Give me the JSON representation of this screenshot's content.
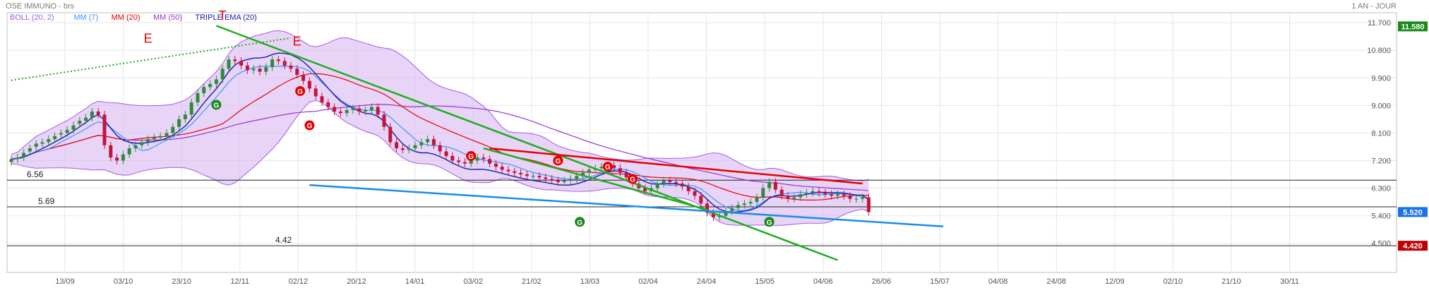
{
  "header": {
    "title": "OSE IMMUNO - brs",
    "period": "1 AN - JOUR",
    "legend": [
      {
        "label": "BOLL (20, 2)",
        "color": "#a35ce6"
      },
      {
        "label": "MM (7)",
        "color": "#3399ff"
      },
      {
        "label": "MM (20)",
        "color": "#e60000"
      },
      {
        "label": "MM (50)",
        "color": "#9933cc"
      },
      {
        "label": "TRIPLE EMA (20)",
        "color": "#1a1aa6"
      }
    ]
  },
  "chart_data": {
    "type": "candlestick",
    "x_tick_labels": [
      "13/09",
      "03/10",
      "23/10",
      "12/11",
      "02/12",
      "20/12",
      "14/01",
      "03/02",
      "21/02",
      "13/03",
      "02/04",
      "24/04",
      "15/05",
      "04/06",
      "26/06",
      "15/07",
      "04/08",
      "24/08",
      "12/09",
      "02/10",
      "21/10",
      "30/11"
    ],
    "y_tick_labels": [
      "4.500",
      "5.400",
      "6.300",
      "7.200",
      "8.100",
      "9.000",
      "9.900",
      "10.800",
      "11.700"
    ],
    "ylim": [
      4.1,
      11.75
    ],
    "price_badges": [
      {
        "value": "11.580",
        "y": 11.58,
        "color": "#1a8a1a"
      },
      {
        "value": "5.520",
        "y": 5.52,
        "color": "#1a73e8"
      },
      {
        "value": "4.420",
        "y": 4.42,
        "color": "#c00000"
      }
    ],
    "horizontal_levels": [
      {
        "label": "6.56",
        "y": 6.56
      },
      {
        "label": "5.69",
        "y": 5.69
      },
      {
        "label": "4.42",
        "y": 4.42
      }
    ],
    "trendlines": [
      {
        "color": "#1fae1f",
        "dashed": true,
        "points": [
          [
            0,
            9.82
          ],
          [
            45,
            11.2
          ]
        ]
      },
      {
        "color": "#1fae1f",
        "dashed": false,
        "points": [
          [
            33,
            11.6
          ],
          [
            133,
            3.95
          ]
        ]
      },
      {
        "color": "#1fae1f",
        "dashed": false,
        "points": [
          [
            76,
            7.6
          ],
          [
            112,
            5.6
          ]
        ]
      },
      {
        "color": "#e60000",
        "dashed": false,
        "points": [
          [
            77,
            7.6
          ],
          [
            137,
            6.45
          ]
        ]
      },
      {
        "color": "#1a8ce6",
        "dashed": false,
        "points": [
          [
            48,
            6.4
          ],
          [
            150,
            5.05
          ]
        ]
      }
    ],
    "markers": [
      {
        "text": "T",
        "x": 34,
        "y": 11.8,
        "kind": "letter"
      },
      {
        "text": "E",
        "x": 22,
        "y": 11.05,
        "kind": "letter"
      },
      {
        "text": "E",
        "x": 46,
        "y": 10.95,
        "kind": "letter"
      },
      {
        "text": "G",
        "x": 33,
        "y": 9.02,
        "kind": "circle",
        "color": "#1a8a1a"
      },
      {
        "text": "G",
        "x": 46.5,
        "y": 9.47,
        "kind": "circle",
        "color": "#e60000"
      },
      {
        "text": "G",
        "x": 48,
        "y": 8.35,
        "kind": "circle",
        "color": "#e60000"
      },
      {
        "text": "G",
        "x": 74,
        "y": 7.35,
        "kind": "circle",
        "color": "#e60000"
      },
      {
        "text": "G",
        "x": 88,
        "y": 7.2,
        "kind": "circle",
        "color": "#e60000"
      },
      {
        "text": "G",
        "x": 96,
        "y": 7.0,
        "kind": "circle",
        "color": "#e60000"
      },
      {
        "text": "G",
        "x": 100,
        "y": 6.6,
        "kind": "circle",
        "color": "#e60000"
      },
      {
        "text": "G",
        "x": 91.5,
        "y": 5.2,
        "kind": "circle",
        "color": "#1a8a1a"
      },
      {
        "text": "G",
        "x": 122,
        "y": 5.2,
        "kind": "circle",
        "color": "#1a8a1a"
      }
    ],
    "close": [
      7.25,
      7.3,
      7.45,
      7.6,
      7.75,
      7.8,
      7.9,
      8.0,
      8.1,
      8.2,
      8.35,
      8.5,
      8.6,
      8.8,
      8.7,
      7.7,
      7.3,
      7.2,
      7.4,
      7.6,
      7.7,
      7.8,
      7.9,
      7.95,
      8.0,
      8.1,
      8.3,
      8.55,
      8.7,
      9.1,
      9.4,
      9.6,
      9.7,
      9.85,
      10.2,
      10.5,
      10.45,
      10.3,
      10.15,
      10.2,
      10.1,
      10.25,
      10.5,
      10.45,
      10.3,
      10.2,
      10.0,
      9.8,
      9.55,
      9.3,
      9.1,
      8.95,
      8.8,
      8.75,
      8.85,
      8.9,
      8.8,
      8.85,
      8.95,
      8.7,
      8.3,
      7.8,
      7.6,
      7.55,
      7.6,
      7.7,
      7.8,
      7.9,
      7.7,
      7.5,
      7.35,
      7.2,
      7.15,
      7.1,
      7.2,
      7.3,
      7.25,
      7.1,
      7.0,
      6.9,
      6.85,
      6.8,
      6.75,
      6.7,
      6.7,
      6.65,
      6.6,
      6.55,
      6.5,
      6.55,
      6.6,
      6.7,
      6.8,
      6.9,
      6.95,
      7.0,
      7.05,
      6.95,
      6.8,
      6.65,
      6.45,
      6.3,
      6.2,
      6.3,
      6.45,
      6.55,
      6.5,
      6.45,
      6.35,
      6.2,
      6.05,
      5.8,
      5.5,
      5.35,
      5.4,
      5.55,
      5.65,
      5.75,
      5.8,
      5.85,
      6.0,
      6.3,
      6.5,
      6.25,
      6.05,
      5.95,
      6.0,
      6.1,
      6.15,
      6.2,
      6.15,
      6.1,
      6.05,
      6.1,
      6.05,
      5.95,
      5.95,
      6.0,
      5.52
    ],
    "open_offsets": [
      -0.1,
      -0.05,
      -0.15,
      -0.1,
      -0.1,
      -0.05,
      -0.1,
      -0.1,
      -0.05,
      -0.1,
      -0.15,
      -0.1,
      -0.1,
      -0.2,
      0.1,
      1.0,
      0.4,
      0.1,
      -0.2,
      -0.2,
      -0.1,
      -0.1,
      -0.1,
      -0.05,
      -0.05,
      -0.1,
      -0.2,
      -0.25,
      -0.15,
      -0.4,
      -0.3,
      -0.2,
      -0.1,
      -0.15,
      -0.35,
      -0.3,
      0.05,
      0.15,
      0.15,
      -0.05,
      0.1,
      -0.15,
      -0.25,
      0.05,
      0.15,
      0.1,
      0.2,
      0.2,
      0.25,
      0.25,
      0.2,
      0.15,
      0.15,
      0.05,
      -0.1,
      -0.05,
      0.1,
      -0.05,
      -0.1,
      0.25,
      0.4,
      0.5,
      0.2,
      0.05,
      -0.05,
      -0.1,
      -0.1,
      -0.1,
      0.2,
      0.2,
      0.15,
      0.15,
      0.05,
      0.05,
      -0.1,
      -0.1,
      0.05,
      0.15,
      0.1,
      0.1,
      0.05,
      0.05,
      0.05,
      0.05,
      0.0,
      0.05,
      0.05,
      0.05,
      0.05,
      -0.05,
      -0.05,
      -0.1,
      -0.1,
      -0.1,
      -0.05,
      -0.05,
      -0.05,
      0.1,
      0.15,
      0.15,
      0.2,
      0.15,
      0.1,
      -0.1,
      -0.15,
      -0.1,
      0.05,
      0.05,
      0.1,
      0.15,
      0.15,
      0.25,
      0.3,
      0.15,
      -0.05,
      -0.15,
      -0.1,
      -0.1,
      -0.05,
      -0.05,
      -0.15,
      -0.3,
      -0.2,
      0.25,
      0.2,
      0.1,
      -0.05,
      -0.1,
      -0.05,
      -0.05,
      0.05,
      0.05,
      0.05,
      -0.05,
      0.05,
      0.1,
      0.0,
      -0.05,
      0.48
    ],
    "overlays": {
      "boll_mid_offset": 0.0,
      "series": [
        "BOLL (20, 2)",
        "MM (7)",
        "MM (20)",
        "MM (50)",
        "TRIPLE EMA (20)"
      ]
    }
  }
}
